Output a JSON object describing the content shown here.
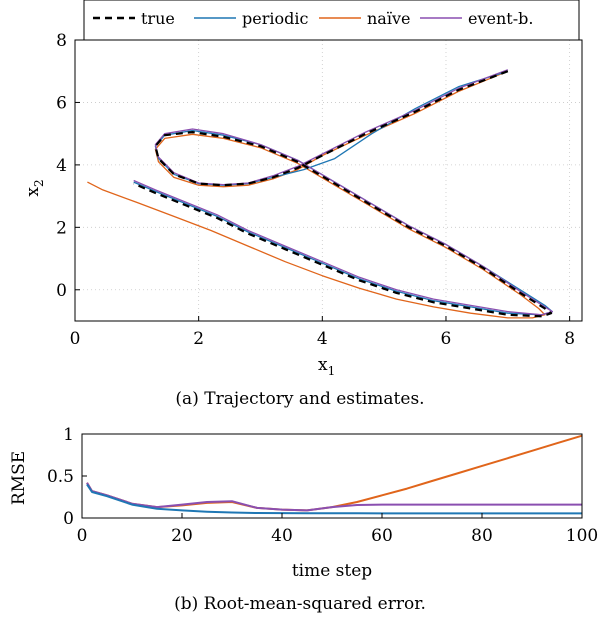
{
  "colors": {
    "true": "#000000",
    "periodic": "#1f77b4",
    "naive": "#e0651b",
    "event": "#8a4fb0",
    "grid": "#c8c8c8"
  },
  "legend": {
    "placement": "top",
    "entries": [
      "true",
      "periodic",
      "naïve",
      "event-b."
    ]
  },
  "chart_data": [
    {
      "type": "line",
      "caption": "(a) Trajectory and estimates.",
      "xlabel": "x",
      "xlabel_sub": "1",
      "ylabel": "x",
      "ylabel_sub": "2",
      "xlim": [
        0,
        8.2
      ],
      "ylim": [
        -1,
        8
      ],
      "xticks": [
        0,
        2,
        4,
        6,
        8
      ],
      "yticks": [
        0,
        2,
        4,
        6,
        8
      ],
      "grid": true,
      "series": [
        {
          "name": "true",
          "style": "dashed",
          "x": [
            7.0,
            6.2,
            5.5,
            4.7,
            4.0,
            3.6,
            3.2,
            2.8,
            2.4,
            2.0,
            1.6,
            1.35,
            1.3,
            1.45,
            1.9,
            2.4,
            3.0,
            3.6,
            4.2,
            4.8,
            5.4,
            6.0,
            6.6,
            7.2,
            7.6,
            7.7,
            7.55,
            7.0,
            6.4,
            5.8,
            5.2,
            4.6,
            4.0,
            3.4,
            2.8,
            2.3,
            1.8,
            1.3,
            0.95
          ],
          "y": [
            7.0,
            6.4,
            5.7,
            5.0,
            4.3,
            3.9,
            3.6,
            3.4,
            3.35,
            3.4,
            3.7,
            4.2,
            4.6,
            4.95,
            5.05,
            4.9,
            4.6,
            4.1,
            3.4,
            2.7,
            2.0,
            1.4,
            0.7,
            -0.1,
            -0.6,
            -0.75,
            -0.85,
            -0.8,
            -0.6,
            -0.4,
            -0.1,
            0.3,
            0.8,
            1.3,
            1.8,
            2.3,
            2.7,
            3.1,
            3.4
          ]
        },
        {
          "name": "periodic",
          "style": "solid",
          "x": [
            7.0,
            6.2,
            5.5,
            4.8,
            4.2,
            3.7,
            3.2,
            2.8,
            2.4,
            2.0,
            1.6,
            1.35,
            1.3,
            1.45,
            1.9,
            2.4,
            3.0,
            3.6,
            4.2,
            4.8,
            5.4,
            6.0,
            6.6,
            7.2,
            7.6,
            7.72,
            7.55,
            7.0,
            6.4,
            5.8,
            5.2,
            4.6,
            4.0,
            3.4,
            2.8,
            2.3,
            1.8,
            1.3,
            0.95
          ],
          "y": [
            7.0,
            6.5,
            5.8,
            5.0,
            4.2,
            3.85,
            3.6,
            3.4,
            3.35,
            3.4,
            3.7,
            4.2,
            4.6,
            4.95,
            5.1,
            4.95,
            4.65,
            4.15,
            3.45,
            2.75,
            2.05,
            1.45,
            0.75,
            0.0,
            -0.5,
            -0.7,
            -0.8,
            -0.75,
            -0.55,
            -0.35,
            -0.05,
            0.35,
            0.85,
            1.35,
            1.85,
            2.35,
            2.75,
            3.15,
            3.45
          ]
        },
        {
          "name": "naïve",
          "style": "solid",
          "x": [
            7.0,
            6.2,
            5.5,
            4.7,
            4.0,
            3.6,
            3.2,
            2.8,
            2.4,
            2.0,
            1.6,
            1.35,
            1.3,
            1.45,
            1.9,
            2.4,
            3.0,
            3.6,
            4.2,
            4.8,
            5.4,
            6.0,
            6.6,
            7.2,
            7.5,
            7.6,
            7.4,
            7.0,
            6.4,
            5.8,
            5.2,
            4.6,
            4.0,
            3.4,
            2.8,
            2.2,
            1.6,
            1.0,
            0.45,
            0.2
          ],
          "y": [
            7.0,
            6.35,
            5.65,
            4.95,
            4.3,
            3.85,
            3.55,
            3.35,
            3.3,
            3.35,
            3.6,
            4.1,
            4.5,
            4.85,
            4.98,
            4.85,
            4.55,
            4.05,
            3.35,
            2.65,
            1.95,
            1.35,
            0.65,
            -0.15,
            -0.6,
            -0.8,
            -0.9,
            -0.9,
            -0.75,
            -0.55,
            -0.3,
            0.05,
            0.45,
            0.9,
            1.4,
            1.9,
            2.35,
            2.8,
            3.2,
            3.45
          ]
        },
        {
          "name": "event-b.",
          "style": "solid",
          "x": [
            7.0,
            6.2,
            5.5,
            4.7,
            4.0,
            3.6,
            3.2,
            2.8,
            2.4,
            2.0,
            1.6,
            1.35,
            1.3,
            1.45,
            1.9,
            2.4,
            3.0,
            3.6,
            4.2,
            4.8,
            5.4,
            6.0,
            6.6,
            7.2,
            7.6,
            7.72,
            7.55,
            7.0,
            6.4,
            5.8,
            5.2,
            4.6,
            4.0,
            3.4,
            2.8,
            2.3,
            1.8,
            1.3,
            0.95
          ],
          "y": [
            7.05,
            6.45,
            5.75,
            5.05,
            4.35,
            3.95,
            3.65,
            3.42,
            3.37,
            3.42,
            3.75,
            4.25,
            4.65,
            5.0,
            5.15,
            5.0,
            4.65,
            4.15,
            3.45,
            2.75,
            2.05,
            1.45,
            0.75,
            -0.05,
            -0.55,
            -0.7,
            -0.8,
            -0.7,
            -0.5,
            -0.3,
            0.0,
            0.4,
            0.9,
            1.4,
            1.9,
            2.4,
            2.8,
            3.2,
            3.5
          ]
        }
      ]
    },
    {
      "type": "line",
      "caption": "(b) Root-mean-squared error.",
      "xlabel": "time step",
      "ylabel": "RMSE",
      "xlim": [
        0,
        100
      ],
      "ylim": [
        0,
        1
      ],
      "xticks": [
        0,
        20,
        40,
        60,
        80,
        100
      ],
      "yticks": [
        0,
        0.5,
        1
      ],
      "ytick_labels": [
        "0",
        "0.5",
        "1"
      ],
      "grid": false,
      "x": [
        1,
        2,
        5,
        10,
        15,
        20,
        25,
        30,
        35,
        40,
        45,
        50,
        55,
        60,
        65,
        70,
        75,
        80,
        85,
        90,
        95,
        100
      ],
      "series": [
        {
          "name": "periodic",
          "values": [
            0.4,
            0.31,
            0.26,
            0.16,
            0.11,
            0.09,
            0.075,
            0.065,
            0.06,
            0.058,
            0.057,
            0.056,
            0.056,
            0.055,
            0.055,
            0.055,
            0.055,
            0.055,
            0.055,
            0.055,
            0.055,
            0.055
          ]
        },
        {
          "name": "naïve",
          "values": [
            0.42,
            0.32,
            0.27,
            0.17,
            0.13,
            0.15,
            0.18,
            0.19,
            0.12,
            0.1,
            0.09,
            0.13,
            0.19,
            0.27,
            0.35,
            0.44,
            0.53,
            0.62,
            0.71,
            0.8,
            0.89,
            0.98
          ]
        },
        {
          "name": "event-b.",
          "values": [
            0.42,
            0.32,
            0.27,
            0.17,
            0.13,
            0.16,
            0.19,
            0.2,
            0.12,
            0.1,
            0.09,
            0.13,
            0.155,
            0.16,
            0.16,
            0.16,
            0.16,
            0.16,
            0.16,
            0.16,
            0.16,
            0.16
          ]
        }
      ]
    }
  ]
}
